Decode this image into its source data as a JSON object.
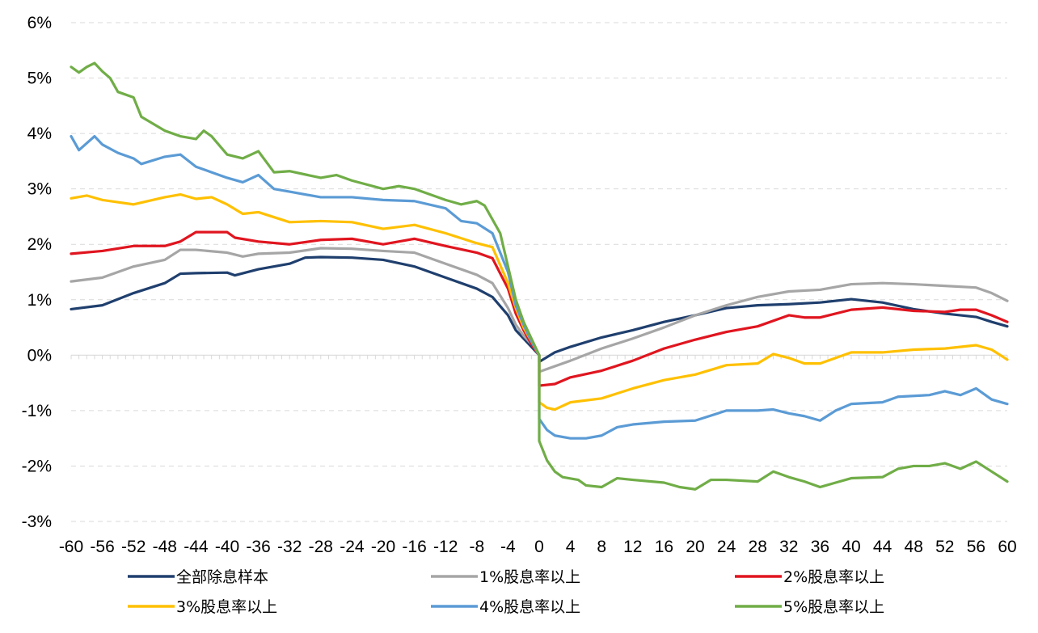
{
  "chart_data": {
    "type": "line",
    "title": "",
    "xlabel": "",
    "ylabel": "",
    "x_range": [
      -60,
      60
    ],
    "ylim": [
      -3,
      6
    ],
    "y_ticks": [
      "6%",
      "5%",
      "4%",
      "3%",
      "2%",
      "1%",
      "0%",
      "-1%",
      "-2%",
      "-3%"
    ],
    "y_tick_values": [
      6,
      5,
      4,
      3,
      2,
      1,
      0,
      -1,
      -2,
      -3
    ],
    "x_ticks": [
      "-60",
      "-56",
      "-52",
      "-48",
      "-44",
      "-40",
      "-36",
      "-32",
      "-28",
      "-24",
      "-20",
      "-16",
      "-12",
      "-8",
      "-4",
      "0",
      "4",
      "8",
      "12",
      "16",
      "20",
      "24",
      "28",
      "32",
      "36",
      "40",
      "44",
      "48",
      "52",
      "56",
      "60"
    ],
    "x_tick_values": [
      -60,
      -56,
      -52,
      -48,
      -44,
      -40,
      -36,
      -32,
      -28,
      -24,
      -20,
      -16,
      -12,
      -8,
      -4,
      0,
      4,
      8,
      12,
      16,
      20,
      24,
      28,
      32,
      36,
      40,
      44,
      48,
      52,
      56,
      60
    ],
    "grid": "horizontal dashed",
    "legend_position": "bottom",
    "series": [
      {
        "name": "全部除息样本",
        "color": "#1f3f6e",
        "points": [
          [
            -60,
            0.83
          ],
          [
            -56,
            0.9
          ],
          [
            -52,
            1.12
          ],
          [
            -48,
            1.3
          ],
          [
            -46,
            1.47
          ],
          [
            -44,
            1.48
          ],
          [
            -40,
            1.49
          ],
          [
            -39,
            1.44
          ],
          [
            -36,
            1.55
          ],
          [
            -32,
            1.65
          ],
          [
            -30,
            1.76
          ],
          [
            -28,
            1.77
          ],
          [
            -24,
            1.76
          ],
          [
            -20,
            1.72
          ],
          [
            -16,
            1.6
          ],
          [
            -12,
            1.4
          ],
          [
            -8,
            1.2
          ],
          [
            -6,
            1.05
          ],
          [
            -4,
            0.72
          ],
          [
            -3,
            0.45
          ],
          [
            -2,
            0.3
          ],
          [
            -1,
            0.15
          ],
          [
            0,
            0.0
          ],
          [
            0,
            -0.12
          ],
          [
            2,
            0.05
          ],
          [
            4,
            0.15
          ],
          [
            8,
            0.32
          ],
          [
            12,
            0.45
          ],
          [
            16,
            0.6
          ],
          [
            20,
            0.72
          ],
          [
            24,
            0.85
          ],
          [
            28,
            0.9
          ],
          [
            32,
            0.92
          ],
          [
            36,
            0.95
          ],
          [
            40,
            1.01
          ],
          [
            44,
            0.95
          ],
          [
            48,
            0.83
          ],
          [
            52,
            0.75
          ],
          [
            56,
            0.69
          ],
          [
            58,
            0.6
          ],
          [
            60,
            0.52
          ]
        ]
      },
      {
        "name": "1%股息率以上",
        "color": "#a6a6a6",
        "points": [
          [
            -60,
            1.33
          ],
          [
            -56,
            1.4
          ],
          [
            -52,
            1.6
          ],
          [
            -48,
            1.72
          ],
          [
            -46,
            1.9
          ],
          [
            -44,
            1.9
          ],
          [
            -40,
            1.85
          ],
          [
            -38,
            1.78
          ],
          [
            -36,
            1.83
          ],
          [
            -32,
            1.85
          ],
          [
            -28,
            1.93
          ],
          [
            -24,
            1.92
          ],
          [
            -20,
            1.88
          ],
          [
            -16,
            1.85
          ],
          [
            -12,
            1.65
          ],
          [
            -8,
            1.45
          ],
          [
            -6,
            1.3
          ],
          [
            -4,
            0.85
          ],
          [
            -3,
            0.55
          ],
          [
            -2,
            0.35
          ],
          [
            -1,
            0.2
          ],
          [
            0,
            0.0
          ],
          [
            0,
            -0.3
          ],
          [
            4,
            -0.1
          ],
          [
            8,
            0.12
          ],
          [
            12,
            0.3
          ],
          [
            16,
            0.5
          ],
          [
            20,
            0.72
          ],
          [
            24,
            0.9
          ],
          [
            28,
            1.05
          ],
          [
            32,
            1.15
          ],
          [
            36,
            1.18
          ],
          [
            40,
            1.28
          ],
          [
            44,
            1.3
          ],
          [
            48,
            1.28
          ],
          [
            52,
            1.25
          ],
          [
            56,
            1.22
          ],
          [
            58,
            1.12
          ],
          [
            60,
            0.98
          ]
        ]
      },
      {
        "name": "2%股息率以上",
        "color": "#e0151f",
        "points": [
          [
            -60,
            1.83
          ],
          [
            -56,
            1.88
          ],
          [
            -52,
            1.97
          ],
          [
            -48,
            1.97
          ],
          [
            -46,
            2.05
          ],
          [
            -44,
            2.22
          ],
          [
            -40,
            2.22
          ],
          [
            -39,
            2.12
          ],
          [
            -36,
            2.05
          ],
          [
            -32,
            2.0
          ],
          [
            -28,
            2.08
          ],
          [
            -24,
            2.1
          ],
          [
            -20,
            2.0
          ],
          [
            -16,
            2.1
          ],
          [
            -12,
            1.97
          ],
          [
            -8,
            1.85
          ],
          [
            -6,
            1.75
          ],
          [
            -4,
            1.2
          ],
          [
            -3,
            0.75
          ],
          [
            -2,
            0.45
          ],
          [
            -1,
            0.2
          ],
          [
            0,
            0.0
          ],
          [
            0,
            -0.55
          ],
          [
            2,
            -0.52
          ],
          [
            4,
            -0.4
          ],
          [
            8,
            -0.28
          ],
          [
            12,
            -0.1
          ],
          [
            16,
            0.12
          ],
          [
            20,
            0.28
          ],
          [
            24,
            0.42
          ],
          [
            28,
            0.52
          ],
          [
            32,
            0.72
          ],
          [
            34,
            0.68
          ],
          [
            36,
            0.68
          ],
          [
            40,
            0.82
          ],
          [
            44,
            0.86
          ],
          [
            48,
            0.8
          ],
          [
            52,
            0.78
          ],
          [
            54,
            0.82
          ],
          [
            56,
            0.82
          ],
          [
            58,
            0.72
          ],
          [
            60,
            0.6
          ]
        ]
      },
      {
        "name": "3%股息率以上",
        "color": "#ffc000",
        "points": [
          [
            -60,
            2.83
          ],
          [
            -58,
            2.88
          ],
          [
            -56,
            2.8
          ],
          [
            -52,
            2.72
          ],
          [
            -48,
            2.85
          ],
          [
            -46,
            2.9
          ],
          [
            -44,
            2.82
          ],
          [
            -42,
            2.85
          ],
          [
            -40,
            2.72
          ],
          [
            -38,
            2.55
          ],
          [
            -36,
            2.58
          ],
          [
            -32,
            2.4
          ],
          [
            -28,
            2.42
          ],
          [
            -24,
            2.4
          ],
          [
            -20,
            2.28
          ],
          [
            -16,
            2.35
          ],
          [
            -12,
            2.2
          ],
          [
            -8,
            2.02
          ],
          [
            -6,
            1.95
          ],
          [
            -4,
            1.3
          ],
          [
            -3,
            0.85
          ],
          [
            -2,
            0.5
          ],
          [
            -1,
            0.25
          ],
          [
            0,
            0.0
          ],
          [
            0,
            -0.85
          ],
          [
            1,
            -0.95
          ],
          [
            2,
            -0.98
          ],
          [
            4,
            -0.85
          ],
          [
            8,
            -0.78
          ],
          [
            12,
            -0.6
          ],
          [
            16,
            -0.45
          ],
          [
            20,
            -0.35
          ],
          [
            24,
            -0.18
          ],
          [
            28,
            -0.15
          ],
          [
            30,
            0.02
          ],
          [
            32,
            -0.05
          ],
          [
            34,
            -0.15
          ],
          [
            36,
            -0.15
          ],
          [
            40,
            0.05
          ],
          [
            44,
            0.05
          ],
          [
            48,
            0.1
          ],
          [
            52,
            0.12
          ],
          [
            56,
            0.18
          ],
          [
            58,
            0.1
          ],
          [
            60,
            -0.08
          ]
        ]
      },
      {
        "name": "4%股息率以上",
        "color": "#5b9bd5",
        "points": [
          [
            -60,
            3.95
          ],
          [
            -59,
            3.7
          ],
          [
            -57,
            3.95
          ],
          [
            -56,
            3.8
          ],
          [
            -54,
            3.65
          ],
          [
            -52,
            3.55
          ],
          [
            -51,
            3.45
          ],
          [
            -48,
            3.58
          ],
          [
            -46,
            3.62
          ],
          [
            -44,
            3.4
          ],
          [
            -42,
            3.3
          ],
          [
            -40,
            3.2
          ],
          [
            -38,
            3.12
          ],
          [
            -36,
            3.25
          ],
          [
            -34,
            3.0
          ],
          [
            -32,
            2.95
          ],
          [
            -28,
            2.85
          ],
          [
            -24,
            2.85
          ],
          [
            -20,
            2.8
          ],
          [
            -16,
            2.78
          ],
          [
            -12,
            2.65
          ],
          [
            -10,
            2.42
          ],
          [
            -8,
            2.38
          ],
          [
            -6,
            2.2
          ],
          [
            -4,
            1.5
          ],
          [
            -3,
            0.9
          ],
          [
            -2,
            0.55
          ],
          [
            -1,
            0.25
          ],
          [
            0,
            0.0
          ],
          [
            0,
            -1.15
          ],
          [
            1,
            -1.35
          ],
          [
            2,
            -1.45
          ],
          [
            4,
            -1.5
          ],
          [
            6,
            -1.5
          ],
          [
            8,
            -1.45
          ],
          [
            10,
            -1.3
          ],
          [
            12,
            -1.25
          ],
          [
            16,
            -1.2
          ],
          [
            20,
            -1.18
          ],
          [
            24,
            -1.0
          ],
          [
            28,
            -1.0
          ],
          [
            30,
            -0.98
          ],
          [
            32,
            -1.05
          ],
          [
            34,
            -1.1
          ],
          [
            36,
            -1.18
          ],
          [
            38,
            -1.0
          ],
          [
            40,
            -0.88
          ],
          [
            44,
            -0.85
          ],
          [
            46,
            -0.75
          ],
          [
            50,
            -0.72
          ],
          [
            52,
            -0.65
          ],
          [
            54,
            -0.72
          ],
          [
            56,
            -0.6
          ],
          [
            58,
            -0.8
          ],
          [
            60,
            -0.88
          ]
        ]
      },
      {
        "name": "5%股息率以上",
        "color": "#70ad47",
        "points": [
          [
            -60,
            5.2
          ],
          [
            -59,
            5.1
          ],
          [
            -58,
            5.2
          ],
          [
            -57,
            5.27
          ],
          [
            -56,
            5.12
          ],
          [
            -55,
            5.0
          ],
          [
            -54,
            4.75
          ],
          [
            -52,
            4.65
          ],
          [
            -51,
            4.3
          ],
          [
            -48,
            4.05
          ],
          [
            -46,
            3.95
          ],
          [
            -44,
            3.9
          ],
          [
            -43,
            4.05
          ],
          [
            -42,
            3.95
          ],
          [
            -40,
            3.62
          ],
          [
            -38,
            3.55
          ],
          [
            -36,
            3.68
          ],
          [
            -34,
            3.3
          ],
          [
            -32,
            3.32
          ],
          [
            -28,
            3.2
          ],
          [
            -26,
            3.25
          ],
          [
            -24,
            3.15
          ],
          [
            -20,
            3.0
          ],
          [
            -18,
            3.05
          ],
          [
            -16,
            3.0
          ],
          [
            -14,
            2.9
          ],
          [
            -12,
            2.8
          ],
          [
            -10,
            2.72
          ],
          [
            -8,
            2.78
          ],
          [
            -7,
            2.7
          ],
          [
            -5,
            2.2
          ],
          [
            -4,
            1.6
          ],
          [
            -3,
            1.0
          ],
          [
            -2,
            0.6
          ],
          [
            -1,
            0.3
          ],
          [
            0,
            0.0
          ],
          [
            0,
            -1.55
          ],
          [
            1,
            -1.9
          ],
          [
            2,
            -2.1
          ],
          [
            3,
            -2.2
          ],
          [
            5,
            -2.25
          ],
          [
            6,
            -2.35
          ],
          [
            8,
            -2.38
          ],
          [
            10,
            -2.22
          ],
          [
            12,
            -2.25
          ],
          [
            16,
            -2.3
          ],
          [
            18,
            -2.38
          ],
          [
            20,
            -2.42
          ],
          [
            22,
            -2.25
          ],
          [
            24,
            -2.25
          ],
          [
            28,
            -2.28
          ],
          [
            30,
            -2.1
          ],
          [
            32,
            -2.2
          ],
          [
            34,
            -2.28
          ],
          [
            36,
            -2.38
          ],
          [
            38,
            -2.3
          ],
          [
            40,
            -2.22
          ],
          [
            44,
            -2.2
          ],
          [
            46,
            -2.05
          ],
          [
            48,
            -2.0
          ],
          [
            50,
            -2.0
          ],
          [
            52,
            -1.95
          ],
          [
            54,
            -2.05
          ],
          [
            56,
            -1.92
          ],
          [
            58,
            -2.1
          ],
          [
            60,
            -2.28
          ]
        ]
      }
    ]
  }
}
